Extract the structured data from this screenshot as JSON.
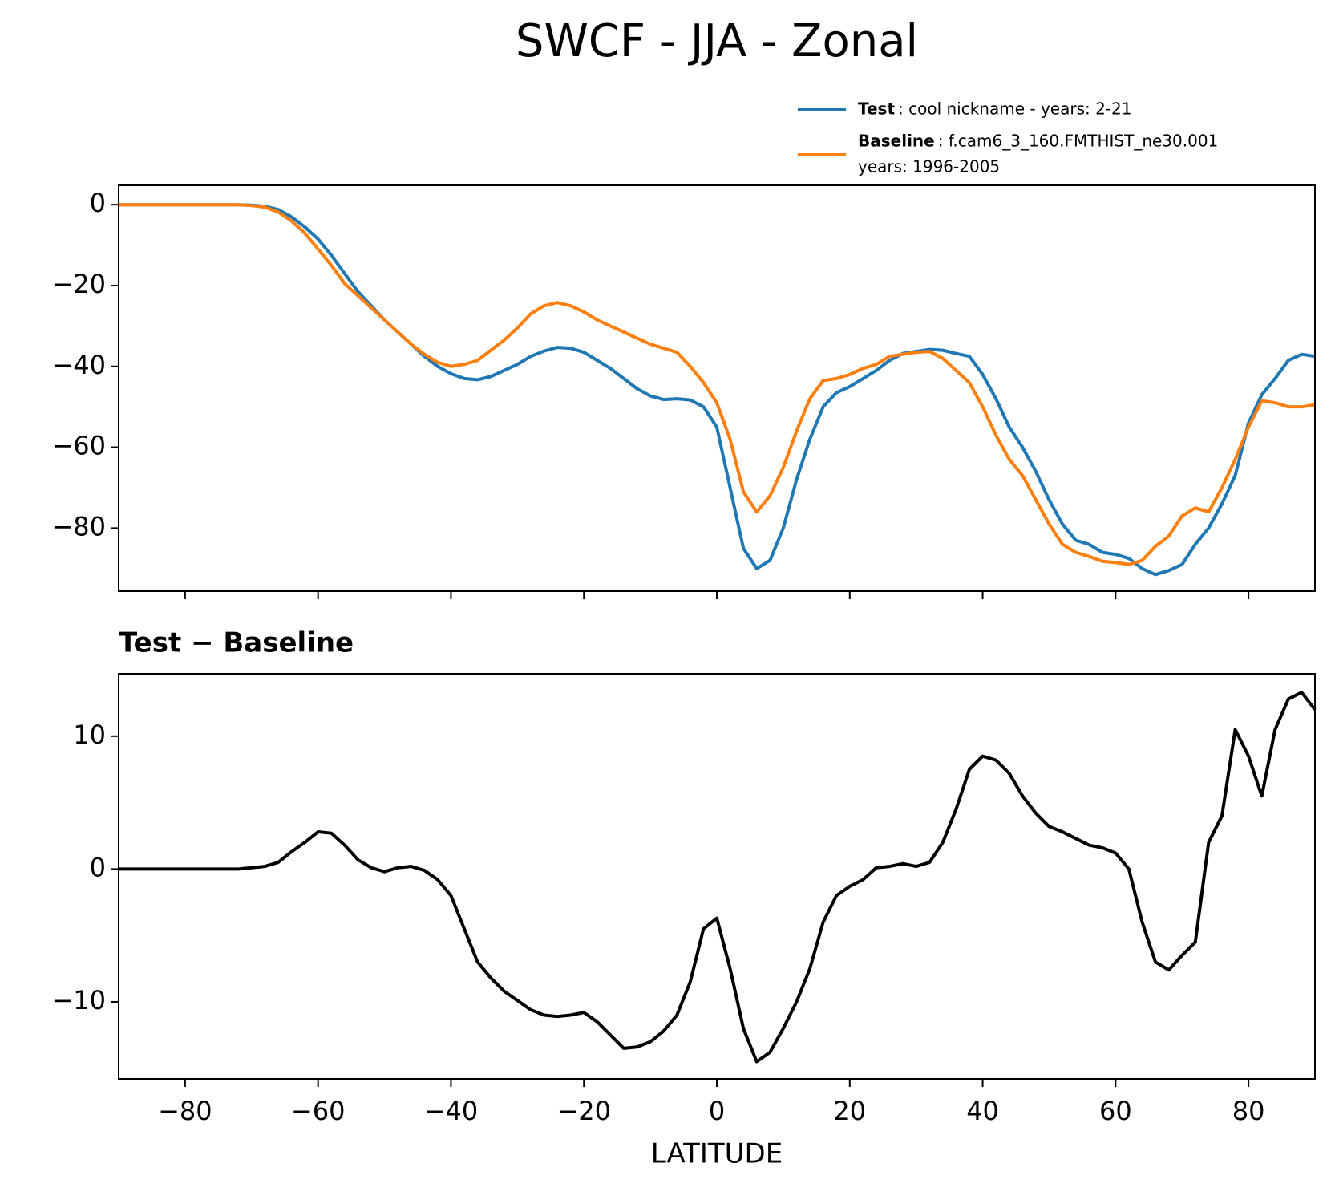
{
  "title": "SWCF - JJA - Zonal",
  "chart_data": [
    {
      "type": "line",
      "x": [
        -90,
        -88,
        -86,
        -84,
        -82,
        -80,
        -78,
        -76,
        -74,
        -72,
        -70,
        -68,
        -66,
        -64,
        -62,
        -60,
        -58,
        -56,
        -54,
        -52,
        -50,
        -48,
        -46,
        -44,
        -42,
        -40,
        -38,
        -36,
        -34,
        -32,
        -30,
        -28,
        -26,
        -24,
        -22,
        -20,
        -18,
        -16,
        -14,
        -12,
        -10,
        -8,
        -6,
        -4,
        -2,
        0,
        2,
        4,
        6,
        8,
        10,
        12,
        14,
        16,
        18,
        20,
        22,
        24,
        26,
        28,
        30,
        32,
        34,
        36,
        38,
        40,
        42,
        44,
        46,
        48,
        50,
        52,
        54,
        56,
        58,
        60,
        62,
        64,
        66,
        68,
        70,
        72,
        74,
        76,
        78,
        80,
        82,
        84,
        86,
        88,
        90
      ],
      "series": [
        {
          "name": "Test",
          "legend_lines": [
            ": cool nickname - years: 2-21"
          ],
          "color": "#1f77b4",
          "values": [
            0,
            0,
            0,
            0,
            0,
            0,
            0,
            0,
            0,
            0,
            -0.1,
            -0.4,
            -1.2,
            -3,
            -5.5,
            -8.5,
            -12.5,
            -17,
            -21.5,
            -25,
            -28.5,
            -31.5,
            -34.5,
            -37.5,
            -40,
            -41.8,
            -43,
            -43.3,
            -42.5,
            -41,
            -39.5,
            -37.5,
            -36.2,
            -35.3,
            -35.5,
            -36.5,
            -38.5,
            -40.5,
            -43,
            -45.5,
            -47.3,
            -48.2,
            -48,
            -48.3,
            -50,
            -55,
            -70,
            -85,
            -90,
            -88,
            -80,
            -68,
            -58,
            -50,
            -46.5,
            -45,
            -43,
            -41,
            -38.5,
            -36.8,
            -36.3,
            -35.8,
            -36,
            -36.8,
            -37.5,
            -42,
            -48,
            -55,
            -60,
            -66,
            -73,
            -79,
            -83,
            -84,
            -86,
            -86.5,
            -87.5,
            -90,
            -91.5,
            -90.5,
            -89,
            -84,
            -80,
            -74,
            -67,
            -54,
            -47,
            -43,
            -38.5,
            -37,
            -37.5
          ]
        },
        {
          "name": "Baseline",
          "legend_lines": [
            ": f.cam6_3_160.FMTHIST_ne30.001",
            "years: 1996-2005"
          ],
          "color": "#ff7f0e",
          "values": [
            0,
            0,
            0,
            0,
            0,
            0,
            0,
            0,
            0,
            0,
            -0.2,
            -0.6,
            -1.8,
            -4,
            -7,
            -11,
            -15,
            -19.5,
            -22.5,
            -25.5,
            -28.5,
            -31.5,
            -34.5,
            -37,
            -39,
            -40,
            -39.5,
            -38.5,
            -36,
            -33.5,
            -30.5,
            -27,
            -25,
            -24.2,
            -25,
            -26.5,
            -28.5,
            -30,
            -31.5,
            -33,
            -34.5,
            -35.5,
            -36.5,
            -40,
            -44,
            -49,
            -58,
            -71,
            -76,
            -72,
            -65,
            -56,
            -48,
            -43.5,
            -43,
            -42,
            -40.5,
            -39.5,
            -37.5,
            -37,
            -36.5,
            -36.3,
            -38,
            -41,
            -44,
            -50,
            -57,
            -63,
            -67,
            -73,
            -79,
            -84,
            -86,
            -87,
            -88.2,
            -88.5,
            -89,
            -88,
            -84.5,
            -82,
            -77,
            -75,
            -76,
            -70,
            -63,
            -55,
            -48.5,
            -49,
            -50,
            -50,
            -49.5
          ]
        }
      ],
      "xlim": [
        -90,
        90
      ],
      "xticks": [
        -80,
        -60,
        -40,
        -20,
        0,
        20,
        40,
        60,
        80
      ],
      "show_xtick_labels": false,
      "ylim": [
        -95.6,
        4.8
      ],
      "yticks": [
        {
          "value": -80,
          "label": "−80"
        },
        {
          "value": -60,
          "label": "−60"
        },
        {
          "value": -40,
          "label": "−40"
        },
        {
          "value": -20,
          "label": "−20"
        },
        0
      ]
    },
    {
      "type": "line",
      "title": "Test − Baseline",
      "xlabel": "LATITUDE",
      "color": "#000000",
      "x": [
        -90,
        -88,
        -86,
        -84,
        -82,
        -80,
        -78,
        -76,
        -74,
        -72,
        -70,
        -68,
        -66,
        -64,
        -62,
        -60,
        -58,
        -56,
        -54,
        -52,
        -50,
        -48,
        -46,
        -44,
        -42,
        -40,
        -38,
        -36,
        -34,
        -32,
        -30,
        -28,
        -26,
        -24,
        -22,
        -20,
        -18,
        -16,
        -14,
        -12,
        -10,
        -8,
        -6,
        -4,
        -2,
        0,
        2,
        4,
        6,
        8,
        10,
        12,
        14,
        16,
        18,
        20,
        22,
        24,
        26,
        28,
        30,
        32,
        34,
        36,
        38,
        40,
        42,
        44,
        46,
        48,
        50,
        52,
        54,
        56,
        58,
        60,
        62,
        64,
        66,
        68,
        70,
        72,
        74,
        76,
        78,
        80,
        82,
        84,
        86,
        88,
        90
      ],
      "values": [
        0,
        0,
        0,
        0,
        0,
        0,
        0,
        0,
        0,
        0,
        0.1,
        0.2,
        0.5,
        1.3,
        2,
        2.8,
        2.7,
        1.8,
        0.7,
        0.1,
        -0.2,
        0.1,
        0.2,
        -0.1,
        -0.8,
        -2,
        -4.5,
        -7,
        -8.2,
        -9.2,
        -9.9,
        -10.6,
        -11,
        -11.1,
        -11,
        -10.8,
        -11.5,
        -12.5,
        -13.5,
        -13.4,
        -13,
        -12.2,
        -11,
        -8.5,
        -4.5,
        -3.7,
        -7.5,
        -12,
        -14.5,
        -13.8,
        -12,
        -10,
        -7.5,
        -4,
        -2,
        -1.3,
        -0.8,
        0.1,
        0.2,
        0.4,
        0.2,
        0.5,
        2,
        4.5,
        7.5,
        8.5,
        8.2,
        7.2,
        5.5,
        4.2,
        3.2,
        2.8,
        2.3,
        1.8,
        1.6,
        1.2,
        0,
        -4,
        -7,
        -7.6,
        -6.5,
        -5.5,
        2,
        4,
        10.5,
        8.5,
        5.5,
        10.5,
        12.8,
        13.3,
        12
      ],
      "xlim": [
        -90,
        90
      ],
      "xticks": [
        {
          "value": -80,
          "label": "−80"
        },
        {
          "value": -60,
          "label": "−60"
        },
        {
          "value": -40,
          "label": "−40"
        },
        {
          "value": -20,
          "label": "−20"
        },
        0,
        20,
        40,
        60,
        80
      ],
      "ylim": [
        -15.8,
        14.7
      ],
      "yticks": [
        {
          "value": -10,
          "label": "−10"
        },
        0,
        10
      ]
    }
  ]
}
